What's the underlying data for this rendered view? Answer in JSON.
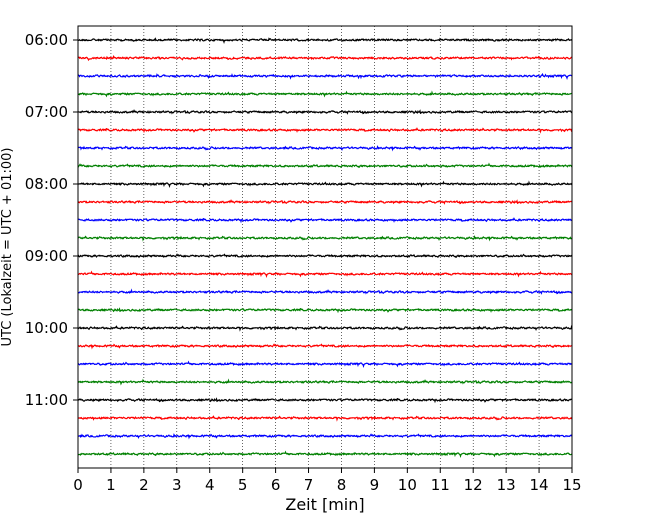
{
  "chart_data": {
    "type": "line",
    "chart_kind": "helicorder",
    "xlabel": "Zeit  [min]",
    "ylabel": "UTC (Lokalzeit = UTC + 01:00)",
    "xlim": [
      0,
      15
    ],
    "x_ticks": [
      "0",
      "1",
      "2",
      "3",
      "4",
      "5",
      "6",
      "7",
      "8",
      "9",
      "10",
      "11",
      "12",
      "13",
      "14",
      "15"
    ],
    "x_grid": true,
    "grid_style": "dotted vertical lines at each minute",
    "y_tick_labels": [
      "06:00",
      "07:00",
      "08:00",
      "09:00",
      "10:00",
      "11:00"
    ],
    "row_start_times": [
      "06:00",
      "06:15",
      "06:30",
      "06:45",
      "07:00",
      "07:15",
      "07:30",
      "07:45",
      "08:00",
      "08:15",
      "08:30",
      "08:45",
      "09:00",
      "09:15",
      "09:30",
      "09:45",
      "10:00",
      "10:15",
      "10:30",
      "10:45",
      "11:00",
      "11:15",
      "11:30",
      "11:45"
    ],
    "minutes_per_row": 15,
    "trace_colors": [
      "#000000",
      "#ff0000",
      "#0000ff",
      "#008000"
    ],
    "signal": "low-amplitude background noise on every row"
  }
}
